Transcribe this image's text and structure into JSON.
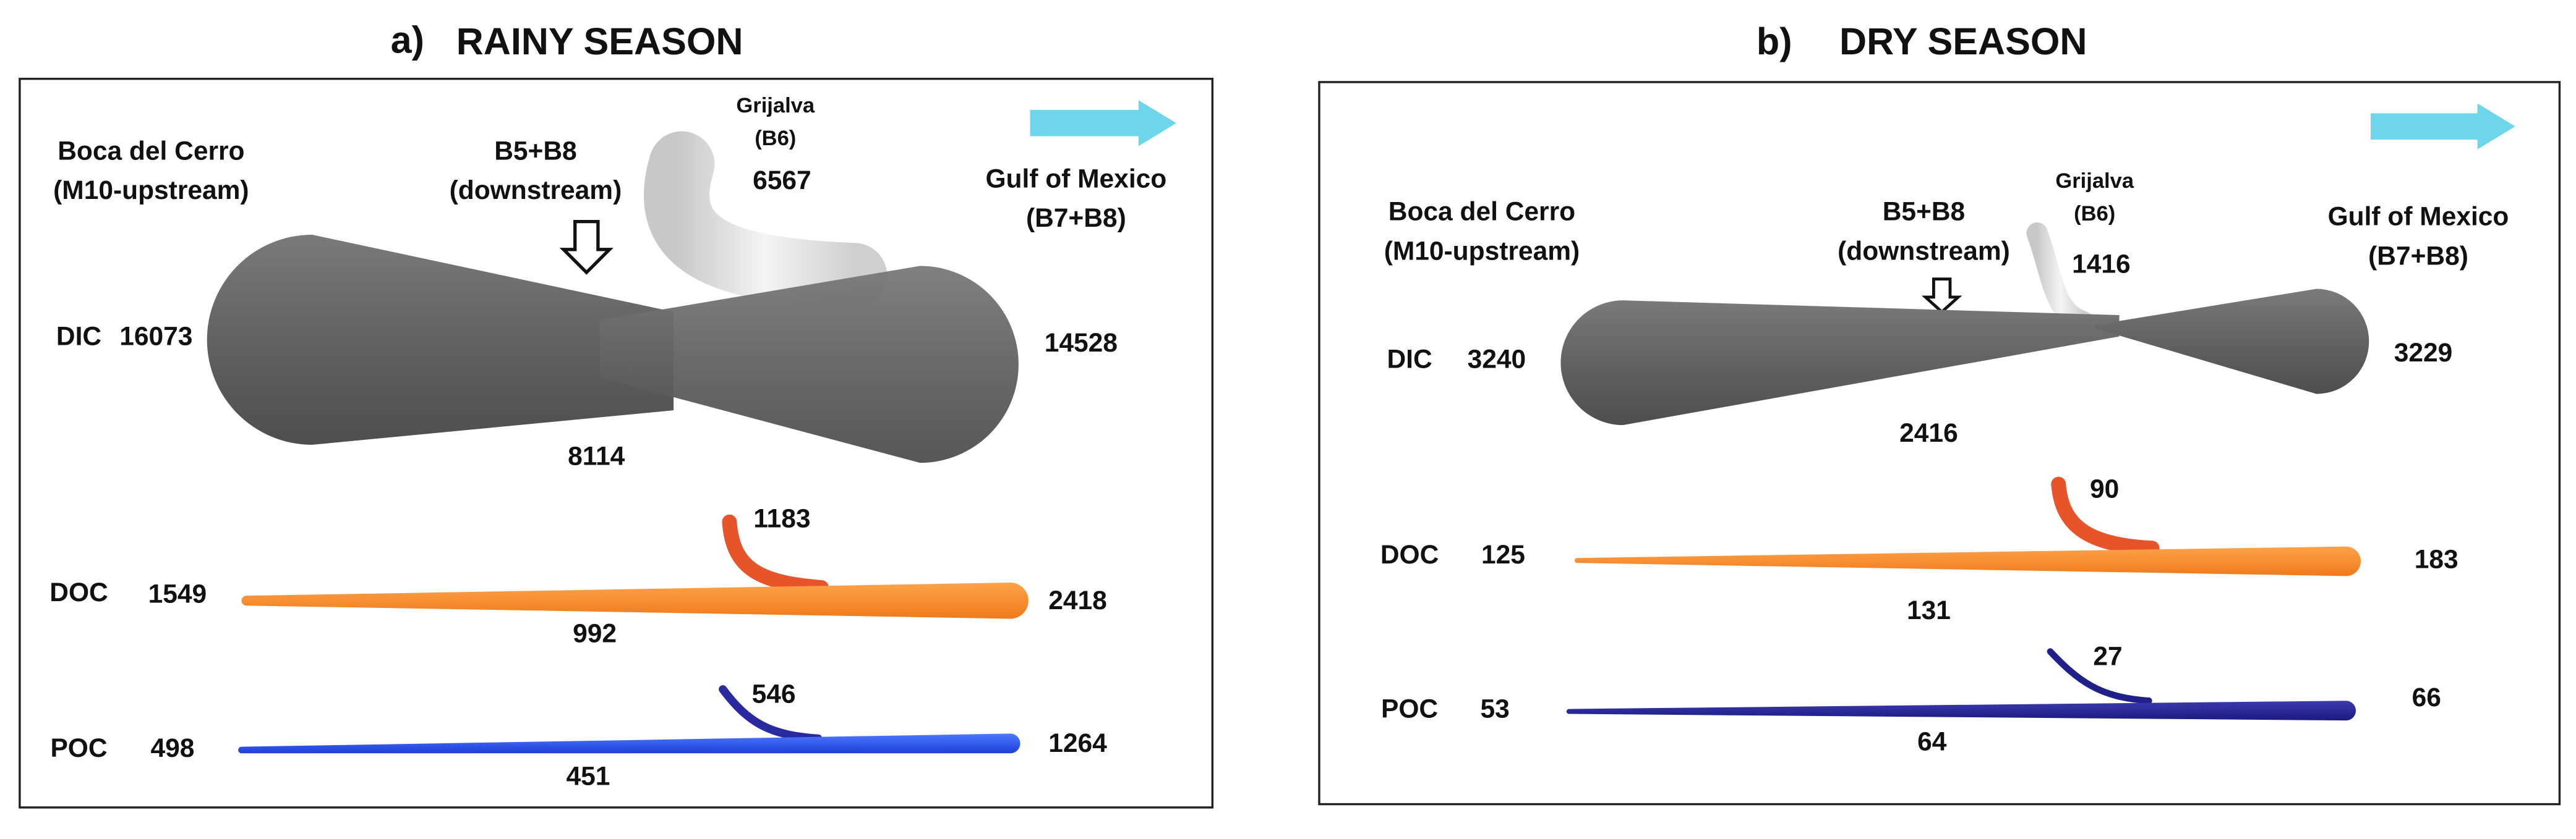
{
  "panels": [
    {
      "label": "a)",
      "title": "RAINY SEASON",
      "upstream": {
        "name": "Boca del Cerro",
        "code": "(M10-upstream)"
      },
      "downstream": {
        "name": "B5+B8",
        "code": "(downstream)"
      },
      "tributary": {
        "name": "Grijalva",
        "code": "(B6)"
      },
      "outlet": {
        "name": "Gulf of Mexico",
        "code": "(B7+B8)"
      },
      "rows": [
        {
          "name": "DIC",
          "upstream": 16073,
          "downstream": 8114,
          "tributary": 6567,
          "outlet": 14528
        },
        {
          "name": "DOC",
          "upstream": 1549,
          "downstream": 992,
          "tributary": 1183,
          "outlet": 2418
        },
        {
          "name": "POC",
          "upstream": 498,
          "downstream": 451,
          "tributary": 546,
          "outlet": 1264
        }
      ]
    },
    {
      "label": "b)",
      "title": "DRY SEASON",
      "upstream": {
        "name": "Boca del Cerro",
        "code": "(M10-upstream)"
      },
      "downstream": {
        "name": "B5+B8",
        "code": "(downstream)"
      },
      "tributary": {
        "name": "Grijalva",
        "code": "(B6)"
      },
      "outlet": {
        "name": "Gulf of Mexico",
        "code": "(B7+B8)"
      },
      "rows": [
        {
          "name": "DIC",
          "upstream": 3240,
          "downstream": 2416,
          "tributary": 1416,
          "outlet": 3229
        },
        {
          "name": "DOC",
          "upstream": 125,
          "downstream": 131,
          "tributary": 90,
          "outlet": 183
        },
        {
          "name": "POC",
          "upstream": 53,
          "downstream": 64,
          "tributary": 27,
          "outlet": 66
        }
      ]
    }
  ]
}
